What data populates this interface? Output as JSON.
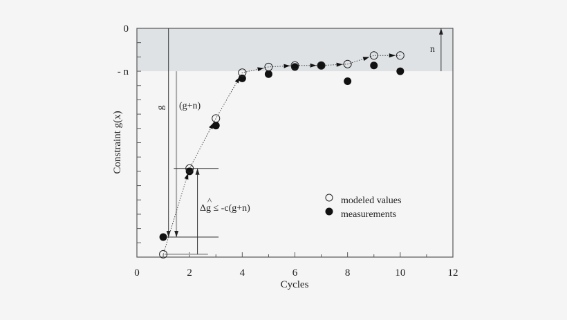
{
  "chart_data": {
    "type": "scatter",
    "title": "",
    "xlabel": "Cycles",
    "ylabel": "Constraint g(x)",
    "xlim": [
      0,
      12
    ],
    "xticks": [
      0,
      2,
      4,
      6,
      8,
      10,
      12
    ],
    "ylim": [
      -16,
      0
    ],
    "ytick_labels": [
      {
        "value": 0,
        "label": "0"
      },
      {
        "value": -3,
        "label": "- n"
      }
    ],
    "shaded_region": {
      "from": -3,
      "to": 0,
      "color": "#dfe2e5"
    },
    "grid": false,
    "legend_placement": "center-right",
    "series": [
      {
        "name": "modeled values",
        "marker": "open-circle",
        "connected": "dotted-with-arrows",
        "x": [
          1,
          2,
          3,
          4,
          5,
          6,
          7,
          8,
          9,
          10
        ],
        "y": [
          -15.8,
          -9.8,
          -6.3,
          -3.1,
          -2.7,
          -2.6,
          -2.6,
          -2.5,
          -1.9,
          -1.9
        ]
      },
      {
        "name": "measurements",
        "marker": "filled-circle",
        "x": [
          1,
          2,
          3,
          4,
          5,
          6,
          7,
          8,
          9,
          10
        ],
        "y": [
          -14.6,
          -10.0,
          -6.8,
          -3.5,
          -3.2,
          -2.7,
          -2.6,
          -3.7,
          -2.6,
          -3.0
        ]
      }
    ],
    "annotations": {
      "g_label": "g",
      "gn_label": "(g+n)",
      "delta_label": "Δg ≤ -c(g+n)",
      "delta_hat": "^",
      "n_label": "n"
    }
  }
}
